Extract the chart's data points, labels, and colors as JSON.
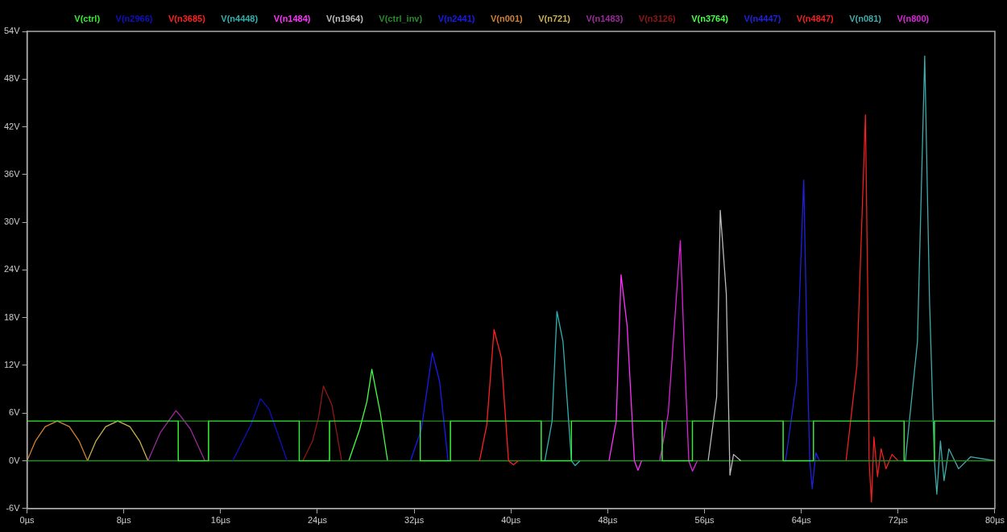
{
  "chart_data": {
    "type": "line",
    "legend": "top",
    "grid": false,
    "marker": "none",
    "line_style": "solid",
    "xlim": [
      0,
      80
    ],
    "ylim": [
      -6,
      54
    ],
    "xticks": [
      {
        "value": 0,
        "label": "0µs"
      },
      {
        "value": 8,
        "label": "8µs"
      },
      {
        "value": 16,
        "label": "16µs"
      },
      {
        "value": 24,
        "label": "24µs"
      },
      {
        "value": 32,
        "label": "32µs"
      },
      {
        "value": 40,
        "label": "40µs"
      },
      {
        "value": 48,
        "label": "48µs"
      },
      {
        "value": 56,
        "label": "56µs"
      },
      {
        "value": 64,
        "label": "64µs"
      },
      {
        "value": 72,
        "label": "72µs"
      },
      {
        "value": 80,
        "label": "80µs"
      }
    ],
    "yticks": [
      {
        "value": -6,
        "label": "-6V"
      },
      {
        "value": 0,
        "label": "0V"
      },
      {
        "value": 6,
        "label": "6V"
      },
      {
        "value": 12,
        "label": "12V"
      },
      {
        "value": 18,
        "label": "18V"
      },
      {
        "value": 24,
        "label": "24V"
      },
      {
        "value": 30,
        "label": "30V"
      },
      {
        "value": 36,
        "label": "36V"
      },
      {
        "value": 42,
        "label": "42V"
      },
      {
        "value": 48,
        "label": "48V"
      },
      {
        "value": 54,
        "label": "54V"
      }
    ],
    "series": [
      {
        "name": "V(ctrl)",
        "color": "#33ee33",
        "x": [
          0,
          12.5,
          12.5,
          15,
          15,
          22.5,
          22.5,
          25,
          25,
          32.5,
          32.5,
          35,
          35,
          42.5,
          42.5,
          45,
          45,
          52.5,
          52.5,
          55,
          55,
          62.5,
          62.5,
          65,
          65,
          72.5,
          72.5,
          75,
          75,
          80
        ],
        "values": [
          5,
          5,
          0,
          0,
          5,
          5,
          0,
          0,
          5,
          5,
          0,
          0,
          5,
          5,
          0,
          0,
          5,
          5,
          0,
          0,
          5,
          5,
          0,
          0,
          5,
          5,
          0,
          0,
          5,
          5
        ]
      },
      {
        "name": "V(n2966)",
        "color": "#1010c0",
        "x": [
          17,
          18.5,
          19.3,
          20,
          21.5
        ],
        "values": [
          0,
          4.5,
          7.8,
          6.5,
          0
        ]
      },
      {
        "name": "V(n3685)",
        "color": "#ff2020",
        "x": [
          37.4,
          38,
          38.6,
          39.2,
          39.8,
          40.2,
          40.6
        ],
        "values": [
          0,
          4.5,
          16.5,
          13,
          0,
          -0.5,
          0
        ]
      },
      {
        "name": "V(n4448)",
        "color": "#30b0b0",
        "x": [
          42.8,
          43.4,
          43.8,
          44.3,
          45,
          45.3,
          45.7
        ],
        "values": [
          0,
          5,
          18.8,
          15,
          0,
          -0.6,
          0
        ]
      },
      {
        "name": "V(n1484)",
        "color": "#ff30ff",
        "x": [
          48.1,
          48.7,
          49.1,
          49.6,
          50.2,
          50.5,
          50.8
        ],
        "values": [
          0,
          5,
          23.4,
          17,
          0,
          -1.2,
          0
        ]
      },
      {
        "name": "V(n1964)",
        "color": "#bbbbbb",
        "x": [
          56.3,
          57,
          57.3,
          57.8,
          58.1,
          58.4,
          59
        ],
        "values": [
          0,
          8,
          31.5,
          21,
          -1.8,
          0.8,
          0
        ]
      },
      {
        "name": "V(ctrl_inv)",
        "color": "#2a8a2a",
        "x": [
          0,
          12.5,
          12.5,
          15,
          15,
          22.5,
          22.5,
          25,
          25,
          32.5,
          32.5,
          35,
          35,
          42.5,
          42.5,
          45,
          45,
          52.5,
          52.5,
          55,
          55,
          62.5,
          62.5,
          65,
          65,
          72.5,
          72.5,
          75,
          75,
          80
        ],
        "values": [
          0,
          0,
          5,
          5,
          0,
          0,
          5,
          5,
          0,
          0,
          5,
          5,
          0,
          0,
          5,
          5,
          0,
          0,
          5,
          5,
          0,
          0,
          5,
          5,
          0,
          0,
          5,
          5,
          0,
          0
        ]
      },
      {
        "name": "V(n2441)",
        "color": "#1a1aee",
        "x": [
          31.7,
          32.6,
          33.5,
          34.1,
          34.8
        ],
        "values": [
          0,
          4,
          13.6,
          10,
          0
        ]
      },
      {
        "name": "V(n001)",
        "color": "#d08030",
        "x": [
          0,
          0.7,
          1.5,
          2.5,
          3.5,
          4.3,
          5
        ],
        "values": [
          0,
          2.5,
          4.3,
          5,
          4.3,
          2.5,
          0
        ]
      },
      {
        "name": "V(n721)",
        "color": "#c8b050",
        "x": [
          5,
          5.7,
          6.5,
          7.5,
          8.5,
          9.3,
          10
        ],
        "values": [
          0,
          2.5,
          4.3,
          5,
          4.3,
          2.5,
          0
        ]
      },
      {
        "name": "V(n1483)",
        "color": "#9a2a9a",
        "x": [
          10,
          11,
          12.3,
          12.6,
          13.5,
          14.7
        ],
        "values": [
          0,
          3.5,
          6.3,
          5.8,
          4,
          0
        ]
      },
      {
        "name": "V(n3126)",
        "color": "#901818",
        "x": [
          22.8,
          23.6,
          24.1,
          24.5,
          25.2,
          26
        ],
        "values": [
          0,
          2.5,
          5.5,
          9.4,
          7,
          0
        ]
      },
      {
        "name": "V(n3764)",
        "color": "#44ff44",
        "x": [
          26.6,
          27.5,
          28.1,
          28.5,
          29.2,
          29.8
        ],
        "values": [
          0,
          4,
          7.5,
          11.5,
          6,
          0
        ]
      },
      {
        "name": "V(n4447)",
        "color": "#2020dd",
        "x": [
          62.7,
          63.6,
          64.2,
          64.5,
          64.7,
          64.9,
          65.2,
          65.5
        ],
        "values": [
          0,
          10,
          35.3,
          12,
          0,
          -3.5,
          1,
          0
        ]
      },
      {
        "name": "V(n4847)",
        "color": "#ee2020",
        "x": [
          67.7,
          68.6,
          69.3,
          69.5,
          69.6,
          69.8,
          70,
          70.3,
          70.6,
          71,
          71.5,
          72
        ],
        "values": [
          0,
          12,
          43.5,
          20,
          0,
          -5.2,
          3,
          -2,
          1.5,
          -1,
          0.8,
          0
        ]
      },
      {
        "name": "V(n081)",
        "color": "#40aaaa",
        "x": [
          72.6,
          73.6,
          74.2,
          74.6,
          75,
          75.2,
          75.5,
          75.8,
          76.2,
          77,
          78,
          80
        ],
        "values": [
          0,
          15,
          50.9,
          20,
          0,
          -4.2,
          2.5,
          -2.5,
          1.5,
          -1,
          0.5,
          0
        ]
      },
      {
        "name": "V(n800)",
        "color": "#dd22dd",
        "x": [
          52.3,
          53,
          54,
          54.3,
          54.7,
          55,
          55.4
        ],
        "values": [
          0,
          6,
          27.7,
          15,
          0,
          -1.3,
          0
        ]
      }
    ]
  }
}
